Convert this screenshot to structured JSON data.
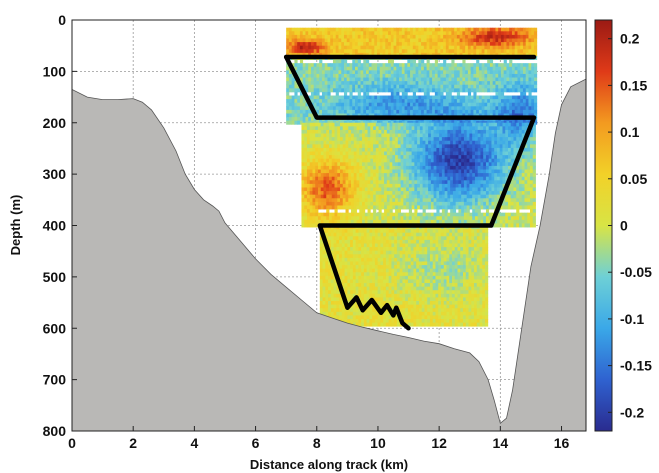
{
  "chart_data": {
    "type": "heatmap",
    "title": "",
    "xlabel": "Distance along track (km)",
    "ylabel": "Depth  (m)",
    "xlim": [
      0,
      16.8
    ],
    "ylim": [
      800,
      0
    ],
    "x_ticks": [
      {
        "value": 0,
        "label": "0"
      },
      {
        "value": 2,
        "label": "2"
      },
      {
        "value": 4,
        "label": "4"
      },
      {
        "value": 6,
        "label": "6"
      },
      {
        "value": 8,
        "label": "8"
      },
      {
        "value": 10,
        "label": "10"
      },
      {
        "value": 12,
        "label": "12"
      },
      {
        "value": 14,
        "label": "14"
      },
      {
        "value": 16,
        "label": "16"
      }
    ],
    "y_ticks": [
      {
        "value": 0,
        "label": "0"
      },
      {
        "value": 100,
        "label": "100"
      },
      {
        "value": 200,
        "label": "200"
      },
      {
        "value": 300,
        "label": "300"
      },
      {
        "value": 400,
        "label": "400"
      },
      {
        "value": 500,
        "label": "500"
      },
      {
        "value": 600,
        "label": "600"
      },
      {
        "value": 700,
        "label": "700"
      },
      {
        "value": 800,
        "label": "800"
      }
    ],
    "grid": true,
    "colorbar": {
      "range": [
        -0.22,
        0.22
      ],
      "ticks": [
        {
          "value": 0.2,
          "label": "0.2"
        },
        {
          "value": 0.15,
          "label": "0.15"
        },
        {
          "value": 0.1,
          "label": "0.1"
        },
        {
          "value": 0.05,
          "label": "0.05"
        },
        {
          "value": 0,
          "label": "0"
        },
        {
          "value": -0.05,
          "label": "-0.05"
        },
        {
          "value": -0.1,
          "label": "-0.1"
        },
        {
          "value": -0.15,
          "label": "-0.15"
        },
        {
          "value": -0.2,
          "label": "-0.2"
        }
      ],
      "colormap": [
        "#2a2b8f",
        "#2f62d0",
        "#3aa8e8",
        "#6ed0d6",
        "#d8e445",
        "#f2d128",
        "#f39a20",
        "#df3a18",
        "#9b1a14"
      ]
    },
    "bathymetry_color": "#b9b8b6",
    "bathymetry": [
      [
        0,
        135
      ],
      [
        0.5,
        150
      ],
      [
        1,
        155
      ],
      [
        1.5,
        155
      ],
      [
        2,
        153
      ],
      [
        2.3,
        160
      ],
      [
        2.6,
        175
      ],
      [
        3,
        210
      ],
      [
        3.4,
        255
      ],
      [
        3.7,
        300
      ],
      [
        4,
        330
      ],
      [
        4.3,
        350
      ],
      [
        4.6,
        362
      ],
      [
        4.8,
        372
      ],
      [
        5,
        395
      ],
      [
        5.5,
        430
      ],
      [
        6,
        465
      ],
      [
        6.5,
        495
      ],
      [
        7,
        520
      ],
      [
        7.5,
        545
      ],
      [
        8,
        570
      ],
      [
        8.5,
        580
      ],
      [
        9,
        590
      ],
      [
        9.5,
        598
      ],
      [
        10,
        605
      ],
      [
        10.5,
        612
      ],
      [
        11,
        618
      ],
      [
        11.5,
        625
      ],
      [
        12,
        630
      ],
      [
        12.5,
        640
      ],
      [
        13,
        648
      ],
      [
        13.3,
        665
      ],
      [
        13.6,
        700
      ],
      [
        13.8,
        740
      ],
      [
        14,
        785
      ],
      [
        14.2,
        775
      ],
      [
        14.4,
        720
      ],
      [
        14.6,
        640
      ],
      [
        14.8,
        560
      ],
      [
        15,
        480
      ],
      [
        15.3,
        400
      ],
      [
        15.6,
        300
      ],
      [
        15.8,
        220
      ],
      [
        16,
        165
      ],
      [
        16.3,
        130
      ],
      [
        16.8,
        115
      ]
    ],
    "data_blocks": [
      {
        "x": [
          7.0,
          15.1
        ],
        "depth": [
          15,
          70
        ],
        "base": 0.06
      },
      {
        "x": [
          7.0,
          15.1
        ],
        "depth": [
          70,
          200
        ],
        "base": -0.04
      },
      {
        "x": [
          7.5,
          15.1
        ],
        "depth": [
          200,
          400
        ],
        "base": 0.0
      },
      {
        "x": [
          8.1,
          13.5
        ],
        "depth": [
          400,
          595
        ],
        "base": 0.02
      }
    ],
    "anomalies": [
      {
        "x": 12.6,
        "depth": 270,
        "value": -0.2,
        "rx": 1.5,
        "ry": 80
      },
      {
        "x": 8.3,
        "depth": 325,
        "value": 0.15,
        "rx": 0.9,
        "ry": 55
      },
      {
        "x": 14.6,
        "depth": 180,
        "value": -0.12,
        "rx": 0.8,
        "ry": 60
      },
      {
        "x": 13.8,
        "depth": 30,
        "value": 0.14,
        "rx": 1.2,
        "ry": 20
      },
      {
        "x": 7.6,
        "depth": 50,
        "value": 0.16,
        "rx": 0.6,
        "ry": 15
      },
      {
        "x": 10.5,
        "depth": 160,
        "value": -0.09,
        "rx": 2.0,
        "ry": 40
      },
      {
        "x": 12.0,
        "depth": 480,
        "value": -0.04,
        "rx": 1.5,
        "ry": 60
      }
    ],
    "gaps": [
      {
        "x": [
          7.0,
          15.1
        ],
        "depth": 75
      },
      {
        "x": [
          7.0,
          15.1
        ],
        "depth": 140
      },
      {
        "x": [
          8.0,
          15.1
        ],
        "depth": 365
      }
    ],
    "track": [
      [
        7.0,
        72
      ],
      [
        8.0,
        190
      ],
      [
        15.1,
        190
      ],
      [
        13.7,
        400
      ],
      [
        8.1,
        400
      ],
      [
        9.0,
        560
      ],
      [
        9.3,
        540
      ],
      [
        9.5,
        565
      ],
      [
        9.8,
        545
      ],
      [
        10.1,
        570
      ],
      [
        10.3,
        555
      ],
      [
        10.5,
        575
      ],
      [
        10.6,
        560
      ],
      [
        10.8,
        590
      ],
      [
        11.0,
        600
      ]
    ],
    "track_top": [
      [
        7.0,
        72
      ],
      [
        15.1,
        72
      ]
    ]
  }
}
